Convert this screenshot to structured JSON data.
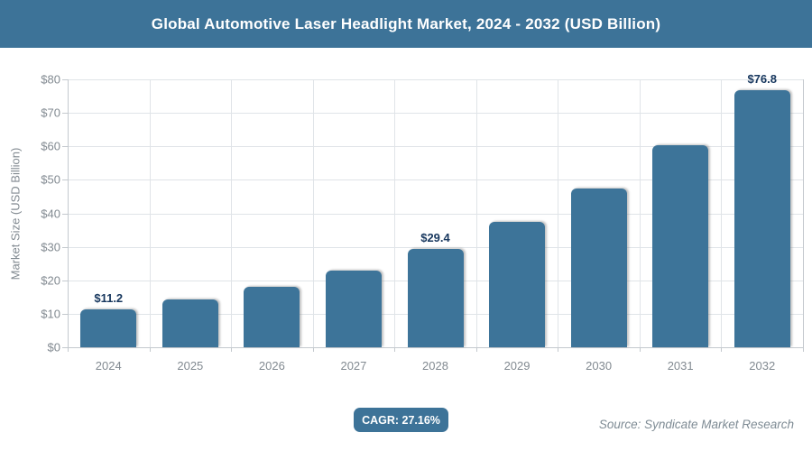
{
  "header": {
    "title": "Global Automotive Laser Headlight Market, 2024 - 2032 (USD Billion)",
    "bg_color": "#3d7398",
    "text_color": "#ffffff"
  },
  "chart_data": {
    "type": "bar",
    "title": "Global Automotive Laser Headlight Market, 2024 - 2032 (USD Billion)",
    "categories": [
      "2024",
      "2025",
      "2026",
      "2027",
      "2028",
      "2029",
      "2030",
      "2031",
      "2032"
    ],
    "values": [
      11.2,
      14.2,
      18.1,
      23.0,
      29.4,
      37.4,
      47.5,
      60.4,
      76.8
    ],
    "data_labels": [
      "$11.2",
      "",
      "",
      "",
      "$29.4",
      "",
      "",
      "",
      "$76.8"
    ],
    "xlabel": "",
    "ylabel": "Market Size (USD Billion)",
    "ylim": [
      0,
      80
    ],
    "ytick_step": 10,
    "ytick_labels": [
      "$0",
      "$10",
      "$20",
      "$30",
      "$40",
      "$50",
      "$60",
      "$70",
      "$80"
    ],
    "grid": true,
    "legend": false,
    "bar_color": "#3d7499",
    "data_label_color": "#17375e",
    "axis_text_color": "#828a91",
    "gridline_color": "#e0e4e8",
    "axis_line_color": "#c4c9ce"
  },
  "footer": {
    "cagr_label": "CAGR: 27.16%",
    "cagr_bg": "#3d7398",
    "cagr_text_color": "#ffffff",
    "source": "Source: Syndicate Market Research",
    "source_color": "#7e8b94"
  }
}
